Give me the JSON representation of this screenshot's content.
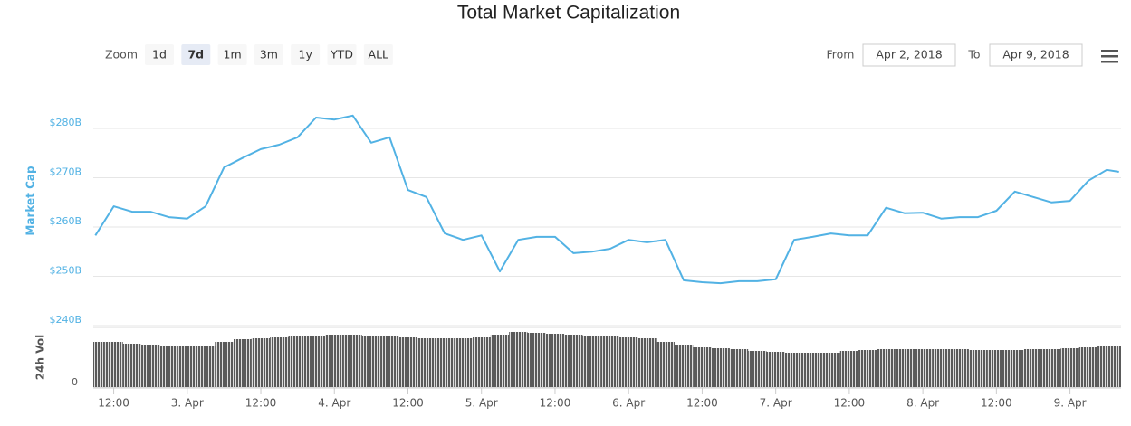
{
  "chart_data": {
    "type": "line",
    "title": "Total Market Capitalization",
    "range_selector": {
      "zoom_label": "Zoom",
      "buttons": [
        "1d",
        "7d",
        "1m",
        "3m",
        "1y",
        "YTD",
        "ALL"
      ],
      "selected": 1,
      "from_label": "From",
      "from_value": "Apr 2, 2018",
      "to_label": "To",
      "to_value": "Apr 9, 2018"
    },
    "ylabel": "Market Cap",
    "x": [
      "2018-04-02T09:00",
      "2018-04-02T12:00",
      "2018-04-02T15:00",
      "2018-04-02T18:00",
      "2018-04-02T21:00",
      "2018-04-03T00:00",
      "2018-04-03T03:00",
      "2018-04-03T06:00",
      "2018-04-03T09:00",
      "2018-04-03T12:00",
      "2018-04-03T15:00",
      "2018-04-03T18:00",
      "2018-04-03T21:00",
      "2018-04-04T00:00",
      "2018-04-04T03:00",
      "2018-04-04T06:00",
      "2018-04-04T09:00",
      "2018-04-04T12:00",
      "2018-04-04T15:00",
      "2018-04-04T18:00",
      "2018-04-04T21:00",
      "2018-04-05T00:00",
      "2018-04-05T03:00",
      "2018-04-05T06:00",
      "2018-04-05T09:00",
      "2018-04-05T12:00",
      "2018-04-05T15:00",
      "2018-04-05T18:00",
      "2018-04-05T21:00",
      "2018-04-06T00:00",
      "2018-04-06T03:00",
      "2018-04-06T06:00",
      "2018-04-06T09:00",
      "2018-04-06T12:00",
      "2018-04-06T15:00",
      "2018-04-06T18:00",
      "2018-04-06T21:00",
      "2018-04-07T00:00",
      "2018-04-07T03:00",
      "2018-04-07T06:00",
      "2018-04-07T09:00",
      "2018-04-07T12:00",
      "2018-04-07T15:00",
      "2018-04-07T18:00",
      "2018-04-07T21:00",
      "2018-04-08T00:00",
      "2018-04-08T03:00",
      "2018-04-08T06:00",
      "2018-04-08T09:00",
      "2018-04-08T12:00",
      "2018-04-08T15:00",
      "2018-04-08T18:00",
      "2018-04-08T21:00",
      "2018-04-09T00:00",
      "2018-04-09T03:00",
      "2018-04-09T06:00",
      "2018-04-09T08:00"
    ],
    "series": [
      {
        "color": "#52b2e4",
        "values": [
          258.3,
          264.2,
          263.1,
          263.1,
          262,
          261.7,
          264.2,
          272.1,
          274,
          275.8,
          276.7,
          278.2,
          282.2,
          281.8,
          282.6,
          277.1,
          278.2,
          267.5,
          266.1,
          258.7,
          257.4,
          258.3,
          251,
          257.4,
          258,
          258,
          254.7,
          255,
          255.6,
          257.4,
          256.9,
          257.4,
          249.2,
          248.8,
          248.6,
          249,
          249,
          249.4,
          257.4,
          258,
          258.7,
          258.3,
          258.3,
          263.9,
          262.8,
          262.9,
          261.7,
          262,
          262,
          263.3,
          267.2,
          266.1,
          265,
          265.3,
          269.4,
          271.6,
          271.2
        ]
      }
    ],
    "xlim": [
      "2018-04-02T08:40",
      "2018-04-09T08:20"
    ],
    "xticks": [
      {
        "value": "2018-04-02T12:00",
        "label": "12:00"
      },
      {
        "value": "2018-04-03T00:00",
        "label": "3. Apr"
      },
      {
        "value": "2018-04-03T12:00",
        "label": "12:00"
      },
      {
        "value": "2018-04-04T00:00",
        "label": "4. Apr"
      },
      {
        "value": "2018-04-04T12:00",
        "label": "12:00"
      },
      {
        "value": "2018-04-05T00:00",
        "label": "5. Apr"
      },
      {
        "value": "2018-04-05T12:00",
        "label": "12:00"
      },
      {
        "value": "2018-04-06T00:00",
        "label": "6. Apr"
      },
      {
        "value": "2018-04-06T12:00",
        "label": "12:00"
      },
      {
        "value": "2018-04-07T00:00",
        "label": "7. Apr"
      },
      {
        "value": "2018-04-07T12:00",
        "label": "12:00"
      },
      {
        "value": "2018-04-08T00:00",
        "label": "8. Apr"
      },
      {
        "value": "2018-04-08T12:00",
        "label": "12:00"
      },
      {
        "value": "2018-04-09T00:00",
        "label": "9. Apr"
      }
    ],
    "ylim": [
      240,
      290
    ],
    "yticks": [
      {
        "value": 240,
        "label": "$240B"
      },
      {
        "value": 250,
        "label": "$250B"
      },
      {
        "value": 260,
        "label": "$260B"
      },
      {
        "value": 270,
        "label": "$270B"
      },
      {
        "value": 280,
        "label": "$280B"
      }
    ],
    "grid": true,
    "volume": {
      "ylabel": "24h Vol",
      "color": "#5a5a5a",
      "ylim": [
        0,
        66
      ],
      "yticks": [
        0
      ],
      "values": [
        50,
        50,
        48,
        47,
        46,
        45,
        46,
        50,
        53,
        54,
        55,
        56,
        57,
        58,
        58,
        57,
        56,
        55,
        54,
        54,
        54,
        55,
        58,
        61,
        60,
        59,
        58,
        57,
        56,
        55,
        54,
        50,
        47,
        44,
        43,
        42,
        40,
        39,
        38,
        38,
        38,
        40,
        41,
        42,
        42,
        42,
        42,
        42,
        41,
        41,
        41,
        42,
        42,
        43,
        44,
        45,
        45
      ]
    }
  }
}
